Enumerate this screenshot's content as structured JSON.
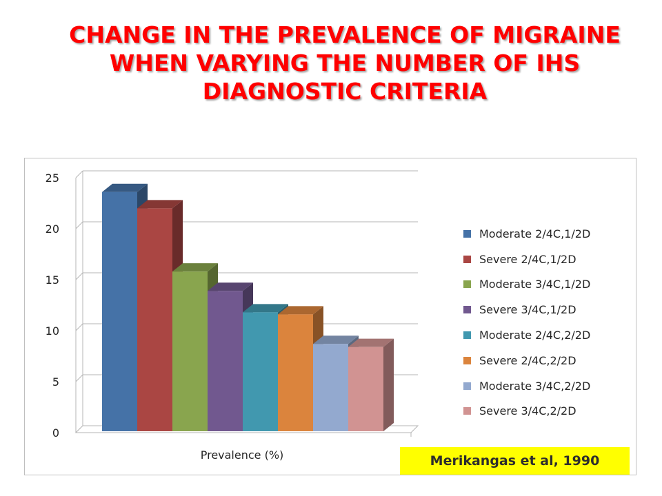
{
  "slide": {
    "title_lines": [
      "CHANGE IN THE PREVALENCE OF MIGRAINE",
      "WHEN VARYING THE  NUMBER OF IHS",
      "DIAGNOSTIC CRITERIA"
    ],
    "citation": "Merikangas et al, 1990"
  },
  "chart_data": {
    "type": "bar",
    "style": "3d-clustered-column",
    "xlabel": "Prevalence (%)",
    "ylabel": "",
    "ylim": [
      0,
      25
    ],
    "yticks": [
      "0",
      "5",
      "10",
      "15",
      "20",
      "25"
    ],
    "grid": true,
    "legend_position": "right",
    "series": [
      {
        "name": "Moderate 2/4C,1/2D",
        "value": 23.6,
        "color": "#4572a7"
      },
      {
        "name": "Severe 2/4C,1/2D",
        "value": 22.0,
        "color": "#aa4643"
      },
      {
        "name": "Moderate 3/4C,1/2D",
        "value": 15.8,
        "color": "#89a54e"
      },
      {
        "name": "Severe 3/4C,1/2D",
        "value": 13.9,
        "color": "#71588f"
      },
      {
        "name": "Moderate 2/4C,2/2D",
        "value": 11.8,
        "color": "#4198af"
      },
      {
        "name": "Severe 2/4C,2/2D",
        "value": 11.6,
        "color": "#db843d"
      },
      {
        "name": "Moderate 3/4C,2/2D",
        "value": 8.7,
        "color": "#93a9cf"
      },
      {
        "name": "Severe 3/4C,2/2D",
        "value": 8.4,
        "color": "#d19392"
      }
    ]
  }
}
